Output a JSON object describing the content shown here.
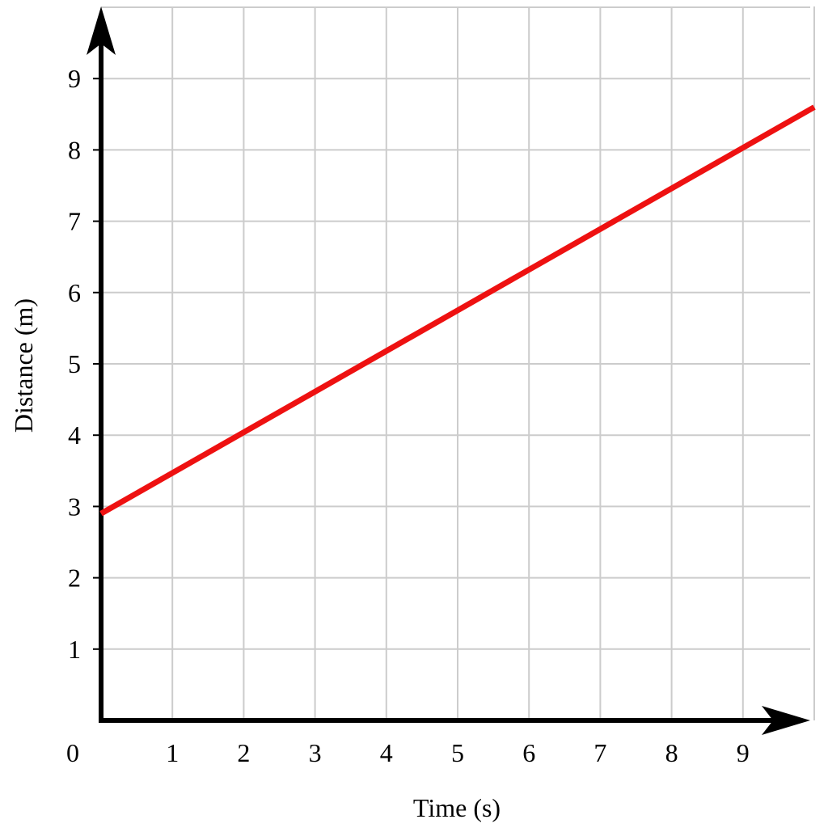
{
  "chart_data": {
    "type": "line",
    "title": "",
    "xlabel": "Time (s)",
    "ylabel": "Distance (m)",
    "xlim": [
      0,
      10
    ],
    "ylim": [
      0,
      10
    ],
    "x_ticks": [
      1,
      2,
      3,
      4,
      5,
      6,
      7,
      8,
      9
    ],
    "y_ticks": [
      1,
      2,
      3,
      4,
      5,
      6,
      7,
      8,
      9
    ],
    "origin_label": "0",
    "grid": true,
    "series": [
      {
        "color": "#ee1111",
        "x": [
          0,
          10
        ],
        "y": [
          2.9,
          8.6
        ]
      }
    ]
  }
}
